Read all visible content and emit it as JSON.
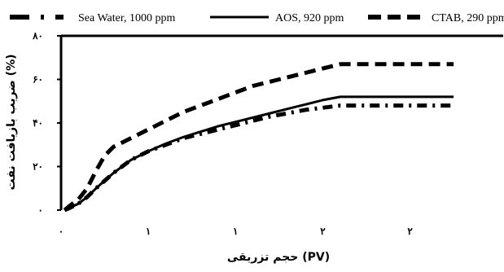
{
  "chart_data": {
    "type": "line",
    "xlabel": "حجم تزریقی (PV)",
    "ylabel": "ضریب بازیافت نفت (%)",
    "xlim": [
      0,
      2.45
    ],
    "ylim": [
      0,
      80
    ],
    "x_ticks": [
      {
        "value": 0,
        "label": "۰"
      },
      {
        "value": 0.5,
        "label": "۱"
      },
      {
        "value": 1.0,
        "label": "۱"
      },
      {
        "value": 1.5,
        "label": "۲"
      },
      {
        "value": 2.0,
        "label": "۲"
      }
    ],
    "y_ticks": [
      {
        "value": 0,
        "label": "۰"
      },
      {
        "value": 20,
        "label": "۲۰"
      },
      {
        "value": 40,
        "label": "۴۰"
      },
      {
        "value": 60,
        "label": "۶۰"
      },
      {
        "value": 80,
        "label": "۸۰"
      }
    ],
    "legend_position": "top",
    "series": [
      {
        "name": "Sea Water, 1000 ppm",
        "style": "dash-dot",
        "color": "#000000",
        "points": [
          [
            0.02,
            0
          ],
          [
            0.05,
            1
          ],
          [
            0.1,
            3
          ],
          [
            0.15,
            6
          ],
          [
            0.2,
            10
          ],
          [
            0.3,
            17
          ],
          [
            0.4,
            23
          ],
          [
            0.5,
            27
          ],
          [
            0.6,
            30
          ],
          [
            0.7,
            33
          ],
          [
            0.8,
            35
          ],
          [
            0.9,
            37
          ],
          [
            1.0,
            39
          ],
          [
            1.1,
            41
          ],
          [
            1.2,
            43
          ],
          [
            1.3,
            44.5
          ],
          [
            1.4,
            46
          ],
          [
            1.5,
            47
          ],
          [
            1.6,
            48
          ],
          [
            1.7,
            48
          ],
          [
            1.8,
            48
          ],
          [
            1.9,
            48
          ],
          [
            2.0,
            48
          ],
          [
            2.1,
            48
          ],
          [
            2.2,
            48
          ],
          [
            2.25,
            48
          ]
        ]
      },
      {
        "name": "AOS, 920 ppm",
        "style": "solid",
        "color": "#000000",
        "points": [
          [
            0.02,
            0
          ],
          [
            0.05,
            1
          ],
          [
            0.1,
            3
          ],
          [
            0.15,
            6
          ],
          [
            0.2,
            10
          ],
          [
            0.3,
            17
          ],
          [
            0.4,
            23
          ],
          [
            0.5,
            27
          ],
          [
            0.6,
            30.5
          ],
          [
            0.7,
            33.5
          ],
          [
            0.8,
            36
          ],
          [
            0.9,
            38.5
          ],
          [
            1.0,
            40.5
          ],
          [
            1.1,
            42.5
          ],
          [
            1.2,
            44.5
          ],
          [
            1.3,
            46.5
          ],
          [
            1.4,
            48.5
          ],
          [
            1.5,
            50.5
          ],
          [
            1.6,
            52
          ],
          [
            1.7,
            52
          ],
          [
            1.8,
            52
          ],
          [
            1.9,
            52
          ],
          [
            2.0,
            52
          ],
          [
            2.1,
            52
          ],
          [
            2.2,
            52
          ],
          [
            2.25,
            52
          ]
        ]
      },
      {
        "name": "CTAB, 290 ppm",
        "style": "dash",
        "color": "#000000",
        "points": [
          [
            0.02,
            0
          ],
          [
            0.05,
            2
          ],
          [
            0.1,
            5
          ],
          [
            0.15,
            10
          ],
          [
            0.2,
            18
          ],
          [
            0.25,
            25
          ],
          [
            0.3,
            29
          ],
          [
            0.4,
            33
          ],
          [
            0.5,
            37
          ],
          [
            0.6,
            41
          ],
          [
            0.7,
            45
          ],
          [
            0.8,
            48
          ],
          [
            0.9,
            51
          ],
          [
            1.0,
            54
          ],
          [
            1.1,
            57
          ],
          [
            1.2,
            59
          ],
          [
            1.3,
            61
          ],
          [
            1.4,
            63
          ],
          [
            1.5,
            65
          ],
          [
            1.6,
            67
          ],
          [
            1.7,
            67
          ],
          [
            1.8,
            67
          ],
          [
            1.9,
            67
          ],
          [
            2.0,
            67
          ],
          [
            2.1,
            67
          ],
          [
            2.2,
            67
          ],
          [
            2.25,
            67
          ]
        ]
      }
    ]
  }
}
